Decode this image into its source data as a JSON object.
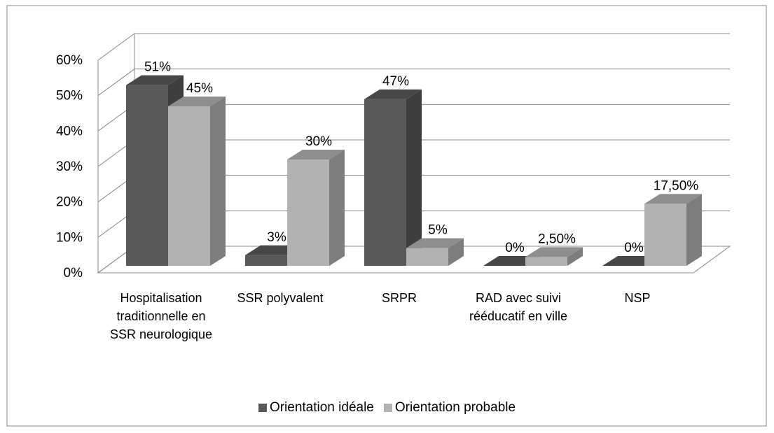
{
  "chart_data": {
    "type": "bar3d",
    "categories": [
      "Hospitalisation traditionnelle en SSR neurologique",
      "SSR polyvalent",
      "SRPR",
      "RAD avec suivi rééducatif en ville",
      "NSP"
    ],
    "series": [
      {
        "name": "Orientation idéale",
        "color": "#595959",
        "values": [
          51,
          3,
          47,
          0,
          0
        ],
        "value_labels": [
          "51%",
          "3%",
          "47%",
          "0%",
          "0%"
        ]
      },
      {
        "name": "Orientation probable",
        "color": "#b2b2b2",
        "values": [
          45,
          30,
          5,
          2.5,
          17.5
        ],
        "value_labels": [
          "45%",
          "30%",
          "5%",
          "2,50%",
          "17,50%"
        ]
      }
    ],
    "ylim": [
      0,
      60
    ],
    "yticks": [
      {
        "value": 0,
        "label": "0%"
      },
      {
        "value": 10,
        "label": "10%"
      },
      {
        "value": 20,
        "label": "20%"
      },
      {
        "value": 30,
        "label": "30%"
      },
      {
        "value": 40,
        "label": "40%"
      },
      {
        "value": 50,
        "label": "50%"
      },
      {
        "value": 60,
        "label": "60%"
      }
    ],
    "grid": true,
    "legend": "bottom"
  }
}
